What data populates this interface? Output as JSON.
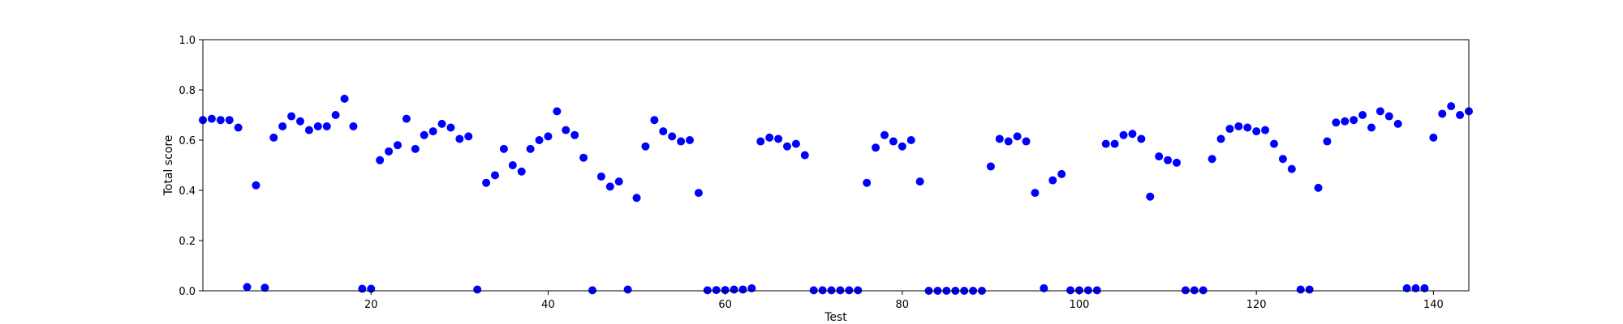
{
  "chart_data": {
    "type": "scatter",
    "xlabel": "Test",
    "ylabel": "Total score",
    "xlim": [
      1,
      144
    ],
    "ylim": [
      0.0,
      1.0
    ],
    "x_ticks": [
      20,
      40,
      60,
      80,
      100,
      120,
      140
    ],
    "y_ticks": [
      0.0,
      0.2,
      0.4,
      0.6,
      0.8,
      1.0
    ],
    "y_tick_labels": [
      "0.0",
      "0.2",
      "0.4",
      "0.6",
      "0.8",
      "1.0"
    ],
    "grid": false,
    "marker_color": "#0000ff",
    "series": [
      {
        "x": [
          1,
          2,
          3,
          4,
          5,
          6,
          7,
          8,
          9,
          10,
          11,
          12,
          13,
          14,
          15,
          16,
          17,
          18,
          19,
          20,
          21,
          22,
          23,
          24,
          25,
          26,
          27,
          28,
          29,
          30,
          31,
          32,
          33,
          34,
          35,
          36,
          37,
          38,
          39,
          40,
          41,
          42,
          43,
          44,
          45,
          46,
          47,
          48,
          49,
          50,
          51,
          52,
          53,
          54,
          55,
          56,
          57,
          58,
          59,
          60,
          61,
          62,
          63,
          64,
          65,
          66,
          67,
          68,
          69,
          70,
          71,
          72,
          73,
          74,
          75,
          76,
          77,
          78,
          79,
          80,
          81,
          82,
          83,
          84,
          85,
          86,
          87,
          88,
          89,
          90,
          91,
          92,
          93,
          94,
          95,
          96,
          97,
          98,
          99,
          100,
          101,
          102,
          103,
          104,
          105,
          106,
          107,
          108,
          109,
          110,
          111,
          112,
          113,
          114,
          115,
          116,
          117,
          118,
          119,
          120,
          121,
          122,
          123,
          124,
          125,
          126,
          127,
          128,
          129,
          130,
          131,
          132,
          133,
          134,
          135,
          136,
          137,
          138,
          139,
          140,
          141,
          142,
          143,
          144
        ],
        "y": [
          0.68,
          0.685,
          0.68,
          0.68,
          0.65,
          0.015,
          0.42,
          0.012,
          0.61,
          0.655,
          0.695,
          0.675,
          0.64,
          0.655,
          0.655,
          0.7,
          0.765,
          0.655,
          0.008,
          0.008,
          0.52,
          0.555,
          0.58,
          0.685,
          0.565,
          0.62,
          0.635,
          0.665,
          0.65,
          0.605,
          0.615,
          0.005,
          0.43,
          0.46,
          0.565,
          0.5,
          0.475,
          0.565,
          0.6,
          0.615,
          0.715,
          0.64,
          0.62,
          0.53,
          0.002,
          0.455,
          0.415,
          0.435,
          0.005,
          0.37,
          0.575,
          0.68,
          0.635,
          0.615,
          0.595,
          0.6,
          0.39,
          0.002,
          0.003,
          0.003,
          0.005,
          0.005,
          0.01,
          0.595,
          0.61,
          0.605,
          0.575,
          0.585,
          0.54,
          0.002,
          0.002,
          0.002,
          0.002,
          0.002,
          0.002,
          0.43,
          0.57,
          0.62,
          0.595,
          0.575,
          0.6,
          0.435,
          0.0,
          0.0,
          0.0,
          0.0,
          0.0,
          0.0,
          0.0,
          0.495,
          0.605,
          0.595,
          0.615,
          0.595,
          0.39,
          0.01,
          0.44,
          0.465,
          0.002,
          0.002,
          0.002,
          0.002,
          0.585,
          0.585,
          0.62,
          0.625,
          0.605,
          0.375,
          0.535,
          0.52,
          0.51,
          0.002,
          0.002,
          0.002,
          0.525,
          0.605,
          0.645,
          0.655,
          0.65,
          0.635,
          0.64,
          0.585,
          0.525,
          0.485,
          0.005,
          0.005,
          0.41,
          0.595,
          0.67,
          0.675,
          0.68,
          0.7,
          0.65,
          0.715,
          0.695,
          0.665,
          0.01,
          0.01,
          0.01,
          0.61,
          0.705,
          0.735,
          0.7,
          0.715
        ]
      }
    ]
  }
}
